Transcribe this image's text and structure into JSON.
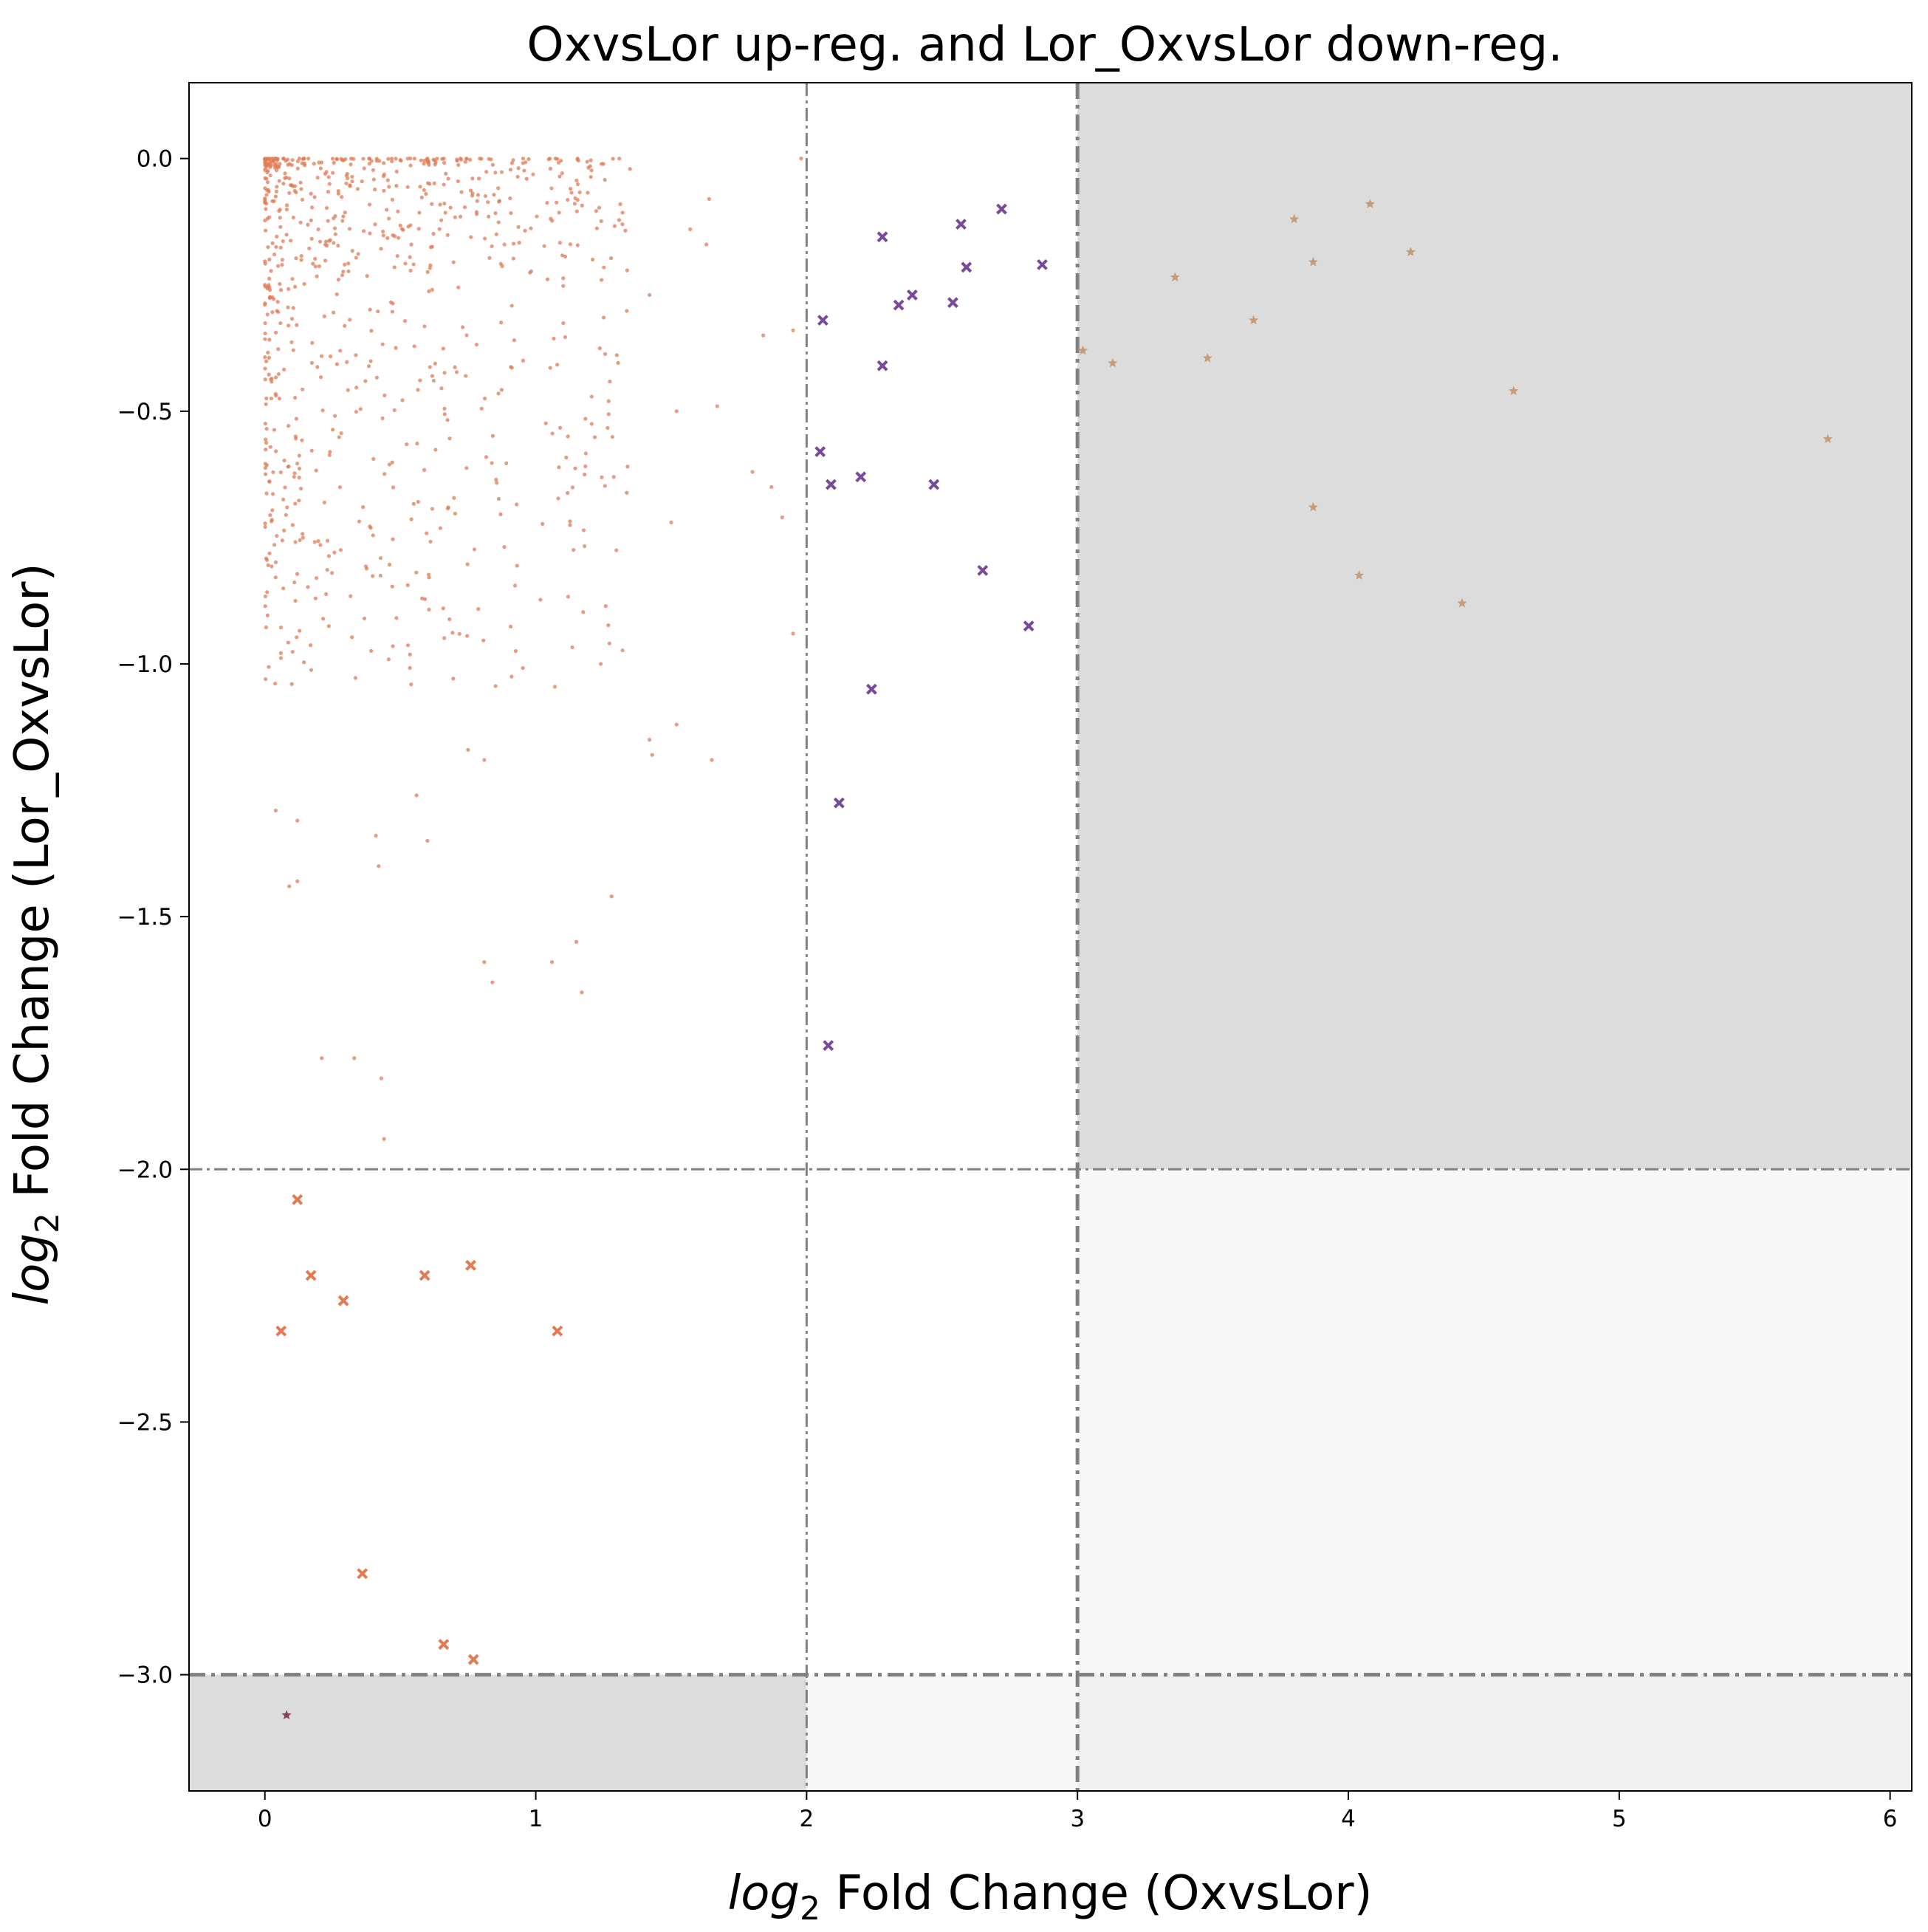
{
  "chart_data": {
    "type": "scatter",
    "title": "OxvsLor up-reg. and Lor_OxvsLor down-reg.",
    "xlabel_italic": "log",
    "xlabel_sub": "2",
    "xlabel_rest": " Fold Change (OxvsLor)",
    "ylabel_italic": "log",
    "ylabel_sub": "2",
    "ylabel_rest": " Fold Change (Lor_OxvsLor)",
    "xlim": [
      -0.28,
      6.08
    ],
    "ylim": [
      -3.23,
      0.15
    ],
    "x_ticks": [
      0,
      1,
      2,
      3,
      4,
      5,
      6
    ],
    "x_tick_labels": [
      "0",
      "1",
      "2",
      "3",
      "4",
      "5",
      "6"
    ],
    "y_ticks": [
      0.0,
      -0.5,
      -1.0,
      -1.5,
      -2.0,
      -2.5,
      -3.0
    ],
    "y_tick_labels": [
      "0.0",
      "−0.5",
      "−1.0",
      "−1.5",
      "−2.0",
      "−2.5",
      "−3.0"
    ],
    "grid": false,
    "legend": "none",
    "thresholds": {
      "x_minor": 2,
      "x_major": 3,
      "y_minor": -2,
      "y_major": -3
    },
    "shaded_regions": [
      {
        "x": [
          3,
          6.08
        ],
        "y": [
          -2,
          0.15
        ],
        "color": "#dcdcdc"
      },
      {
        "x": [
          3,
          6.08
        ],
        "y": [
          -3,
          -2
        ],
        "color": "#f7f7f7"
      },
      {
        "x": [
          3,
          6.08
        ],
        "y": [
          -3.23,
          -3
        ],
        "color": "#efefef"
      },
      {
        "x": [
          2,
          3
        ],
        "y": [
          -3.23,
          -3
        ],
        "color": "#f7f7f7"
      },
      {
        "x": [
          -0.28,
          2
        ],
        "y": [
          -3.23,
          -3
        ],
        "color": "#dcdcdc"
      }
    ],
    "colors": {
      "background_dots": "#e07b54",
      "purple_x": "#7a4a9a",
      "tan_star": "#c79a78",
      "red_x": "#e07b54",
      "dark_star": "#8a3f5a",
      "threshold_line": "#808080"
    },
    "series": [
      {
        "marker": "x",
        "color": "#7a4a9a",
        "points": [
          [
            2.28,
            -0.155
          ],
          [
            2.57,
            -0.13
          ],
          [
            2.72,
            -0.1
          ],
          [
            2.06,
            -0.32
          ],
          [
            2.34,
            -0.29
          ],
          [
            2.39,
            -0.27
          ],
          [
            2.54,
            -0.285
          ],
          [
            2.59,
            -0.215
          ],
          [
            2.87,
            -0.21
          ],
          [
            2.28,
            -0.41
          ],
          [
            2.05,
            -0.58
          ],
          [
            2.09,
            -0.645
          ],
          [
            2.2,
            -0.63
          ],
          [
            2.47,
            -0.645
          ],
          [
            2.65,
            -0.815
          ],
          [
            2.82,
            -0.925
          ],
          [
            2.24,
            -1.05
          ],
          [
            2.12,
            -1.275
          ],
          [
            2.08,
            -1.755
          ]
        ]
      },
      {
        "marker": "star",
        "color": "#c79a78",
        "points": [
          [
            3.02,
            -0.38
          ],
          [
            3.13,
            -0.405
          ],
          [
            3.36,
            -0.235
          ],
          [
            3.48,
            -0.395
          ],
          [
            3.65,
            -0.32
          ],
          [
            3.8,
            -0.12
          ],
          [
            3.87,
            -0.205
          ],
          [
            3.87,
            -0.69
          ],
          [
            4.08,
            -0.09
          ],
          [
            4.23,
            -0.185
          ],
          [
            4.04,
            -0.825
          ],
          [
            4.42,
            -0.88
          ],
          [
            4.61,
            -0.46
          ],
          [
            5.77,
            -0.555
          ]
        ]
      },
      {
        "marker": "x",
        "color": "#e07b54",
        "points": [
          [
            0.12,
            -2.06
          ],
          [
            0.17,
            -2.21
          ],
          [
            0.06,
            -2.32
          ],
          [
            0.29,
            -2.26
          ],
          [
            0.59,
            -2.21
          ],
          [
            0.76,
            -2.19
          ],
          [
            1.08,
            -2.32
          ],
          [
            0.36,
            -2.8
          ],
          [
            0.66,
            -2.94
          ],
          [
            0.77,
            -2.97
          ]
        ]
      },
      {
        "marker": "star",
        "color": "#8a3f5a",
        "points": [
          [
            0.08,
            -3.08
          ]
        ]
      },
      {
        "marker": "dot",
        "color": "#e07b54",
        "count": 820,
        "sparse_points": [
          [
            1.21,
            -0.2
          ],
          [
            1.32,
            -0.13
          ],
          [
            1.42,
            -0.27
          ],
          [
            1.52,
            -0.5
          ],
          [
            1.57,
            -0.14
          ],
          [
            1.63,
            -0.17
          ],
          [
            1.64,
            -0.08
          ],
          [
            1.67,
            -0.49
          ],
          [
            1.8,
            -0.62
          ],
          [
            1.84,
            -0.35
          ],
          [
            1.87,
            -0.65
          ],
          [
            1.95,
            -0.34
          ],
          [
            1.98,
            0.0
          ],
          [
            1.91,
            -0.71
          ],
          [
            1.95,
            -0.94
          ],
          [
            1.5,
            -0.72
          ],
          [
            1.52,
            -1.12
          ],
          [
            1.65,
            -1.19
          ],
          [
            1.42,
            -1.15
          ],
          [
            1.43,
            -1.18
          ],
          [
            1.24,
            -1.0
          ],
          [
            1.28,
            -1.46
          ],
          [
            1.15,
            -1.55
          ],
          [
            1.17,
            -1.65
          ],
          [
            1.06,
            -1.59
          ],
          [
            0.81,
            -1.59
          ],
          [
            0.84,
            -1.63
          ],
          [
            0.43,
            -1.82
          ],
          [
            0.44,
            -1.94
          ],
          [
            0.21,
            -1.78
          ],
          [
            0.33,
            -1.78
          ],
          [
            0.09,
            -1.44
          ],
          [
            0.12,
            -1.43
          ],
          [
            0.04,
            -1.29
          ],
          [
            0.12,
            -1.31
          ],
          [
            0.6,
            -1.35
          ],
          [
            0.56,
            -1.26
          ],
          [
            0.41,
            -1.34
          ],
          [
            0.42,
            -1.4
          ],
          [
            0.75,
            -1.17
          ],
          [
            0.81,
            -1.19
          ]
        ]
      }
    ]
  }
}
